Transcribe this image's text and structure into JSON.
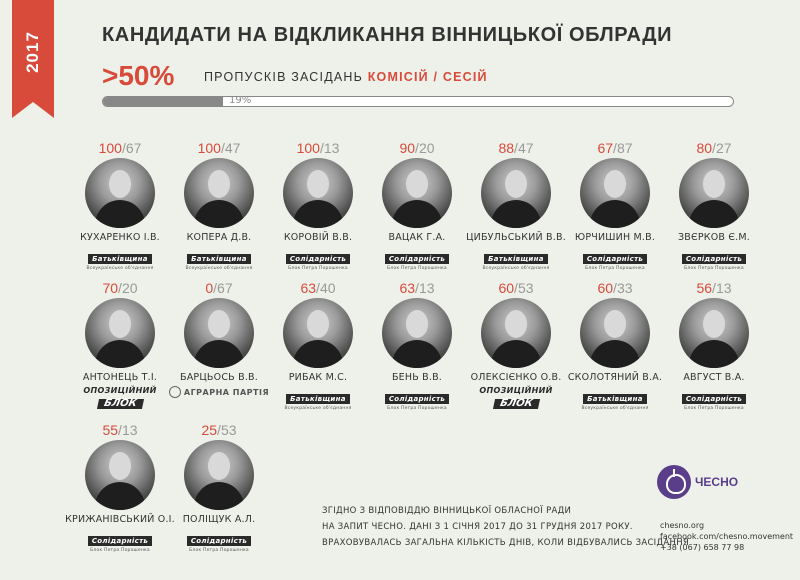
{
  "year": "2017",
  "title": "КАНДИДАТИ НА ВІДКЛИКАННЯ ВІННИЦЬКОЇ ОБЛРАДИ",
  "headline": {
    "big": ">50%",
    "sub_prefix": "ПРОПУСКІВ ЗАСІДАНЬ ",
    "sub_highlight": "КОМІСІЙ / СЕСІЙ",
    "progress_label": "19%",
    "progress_value": 0.19
  },
  "colors": {
    "accent": "#d84a3a",
    "secondary": "#999999",
    "brand": "#5a3e8a"
  },
  "candidates": [
    {
      "committees": "100",
      "sessions": "67",
      "name": "КУХАРЕНКО І.В.",
      "party": "batkivshchyna"
    },
    {
      "committees": "100",
      "sessions": "47",
      "name": "КОПЕРА Д.В.",
      "party": "batkivshchyna"
    },
    {
      "committees": "100",
      "sessions": "13",
      "name": "КОРОВІЙ В.В.",
      "party": "solidarnist"
    },
    {
      "committees": "90",
      "sessions": "20",
      "name": "ВАЦАК Г.А.",
      "party": "solidarnist"
    },
    {
      "committees": "88",
      "sessions": "47",
      "name": "ЦИБУЛЬСЬКИЙ В.В.",
      "party": "batkivshchyna"
    },
    {
      "committees": "67",
      "sessions": "87",
      "name": "ЮРЧИШИН М.В.",
      "party": "solidarnist"
    },
    {
      "committees": "80",
      "sessions": "27",
      "name": "ЗВЄРКОВ Є.М.",
      "party": "solidarnist"
    },
    {
      "committees": "70",
      "sessions": "20",
      "name": "АНТОНЕЦЬ Т.І.",
      "party": "opposition"
    },
    {
      "committees": "0",
      "sessions": "67",
      "name": "БАРЦЬОСЬ В.В.",
      "party": "agrarian"
    },
    {
      "committees": "63",
      "sessions": "40",
      "name": "РИБАК М.С.",
      "party": "batkivshchyna"
    },
    {
      "committees": "63",
      "sessions": "13",
      "name": "БЕНЬ В.В.",
      "party": "solidarnist"
    },
    {
      "committees": "60",
      "sessions": "53",
      "name": "ОЛЕКСІЄНКО О.В.",
      "party": "opposition"
    },
    {
      "committees": "60",
      "sessions": "33",
      "name": "СКОЛОТЯНИЙ В.А.",
      "party": "batkivshchyna"
    },
    {
      "committees": "56",
      "sessions": "13",
      "name": "АВГУСТ В.А.",
      "party": "solidarnist"
    },
    {
      "committees": "55",
      "sessions": "13",
      "name": "КРИЖАНІВСЬКИЙ О.І.",
      "party": "solidarnist"
    },
    {
      "committees": "25",
      "sessions": "53",
      "name": "ПОЛІЩУК А.Л.",
      "party": "solidarnist"
    }
  ],
  "parties": {
    "batkivshchyna": {
      "label": "Батьківщина",
      "tagline": "Всеукраїнське об'єднання"
    },
    "solidarnist": {
      "label": "Солідарність",
      "tagline": "Блок Петра Порошенка"
    },
    "opposition": {
      "line1": "ОПОЗИЦІЙНИЙ",
      "line2": "БЛОК"
    },
    "agrarian": {
      "label": "АГРАРНА ПАРТІЯ"
    }
  },
  "footnote": [
    "ЗГІДНО З ВІДПОВІДДЮ ВІННИЦЬКОЇ ОБЛАСНОЇ РАДИ",
    "НА ЗАПИТ ЧЕСНО. ДАНІ З 1 СІЧНЯ 2017 ДО 31 ГРУДНЯ 2017 РОКУ.",
    "ВРАХОВУВАЛАСЬ ЗАГАЛЬНА КІЛЬКІСТЬ ДНІВ, КОЛИ ВІДБУВАЛИСЬ ЗАСІДАННЯ"
  ],
  "brand": {
    "name": "ЧЕСНО",
    "icon": "garlic-icon",
    "contacts": [
      "chesno.org",
      "facebook.com/chesno.movement",
      "+38 (067) 658 77 98"
    ]
  }
}
